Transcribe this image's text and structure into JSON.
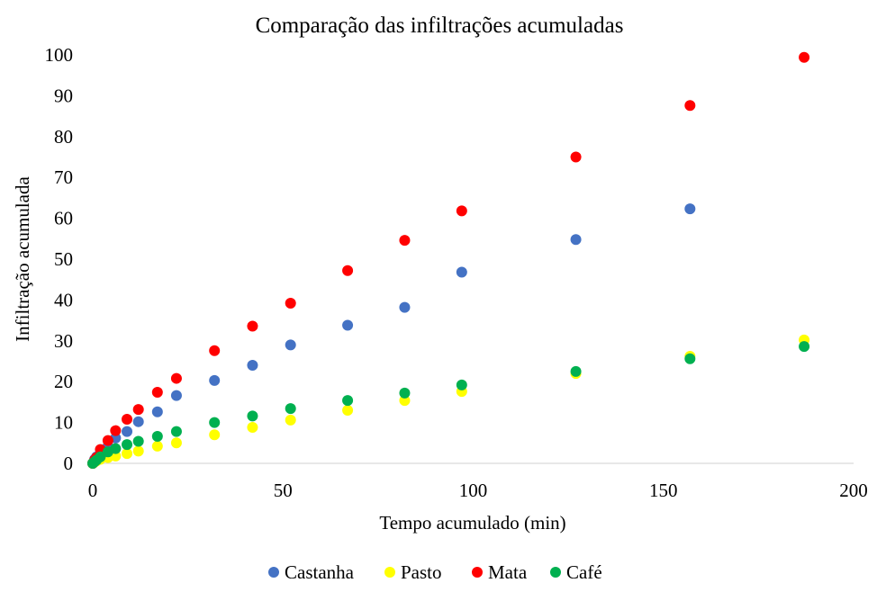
{
  "chart_data": {
    "type": "scatter",
    "title": "Comparação das infiltrações acumuladas",
    "xlabel": "Tempo acumulado (min)",
    "ylabel": "Infiltração acumulada",
    "xlim": [
      0,
      200
    ],
    "ylim": [
      0,
      100
    ],
    "x_ticks": [
      0,
      50,
      100,
      150,
      200
    ],
    "y_ticks": [
      0,
      10,
      20,
      30,
      40,
      50,
      60,
      70,
      80,
      90,
      100
    ],
    "x_tick_labels": [
      "0",
      "50",
      "100",
      "150",
      "200"
    ],
    "y_tick_labels": [
      "0",
      "10",
      "20",
      "30",
      "40",
      "50",
      "60",
      "70",
      "80",
      "90",
      "100"
    ],
    "grid": false,
    "legend_position": "bottom",
    "series": [
      {
        "name": "Castanha",
        "color": "#4472C4",
        "points": [
          [
            0,
            0
          ],
          [
            0.5,
            1.0
          ],
          [
            1,
            1.6
          ],
          [
            2,
            2.4
          ],
          [
            4,
            4.2
          ],
          [
            6,
            6.2
          ],
          [
            9,
            7.8
          ],
          [
            12,
            10.2
          ],
          [
            17,
            12.6
          ],
          [
            22,
            16.6
          ],
          [
            32,
            20.3
          ],
          [
            42,
            24.0
          ],
          [
            52,
            29.0
          ],
          [
            67,
            33.8
          ],
          [
            82,
            38.2
          ],
          [
            97,
            46.8
          ],
          [
            127,
            54.8
          ],
          [
            157,
            62.3
          ]
        ]
      },
      {
        "name": "Pasto",
        "color": "#FFFF00",
        "points": [
          [
            0,
            0
          ],
          [
            0.5,
            0.3
          ],
          [
            1,
            0.6
          ],
          [
            2,
            1.0
          ],
          [
            4,
            1.4
          ],
          [
            6,
            1.8
          ],
          [
            9,
            2.4
          ],
          [
            12,
            3.0
          ],
          [
            17,
            4.2
          ],
          [
            22,
            5.0
          ],
          [
            32,
            7.0
          ],
          [
            42,
            8.8
          ],
          [
            52,
            10.6
          ],
          [
            67,
            13.0
          ],
          [
            82,
            15.4
          ],
          [
            97,
            17.6
          ],
          [
            127,
            22.0
          ],
          [
            157,
            26.2
          ],
          [
            187,
            30.2
          ]
        ]
      },
      {
        "name": "Mata",
        "color": "#FF0000",
        "points": [
          [
            0,
            0
          ],
          [
            0.5,
            0.8
          ],
          [
            1,
            1.4
          ],
          [
            2,
            3.4
          ],
          [
            4,
            5.6
          ],
          [
            6,
            8.0
          ],
          [
            9,
            10.8
          ],
          [
            12,
            13.2
          ],
          [
            17,
            17.4
          ],
          [
            22,
            20.8
          ],
          [
            32,
            27.6
          ],
          [
            42,
            33.6
          ],
          [
            52,
            39.2
          ],
          [
            67,
            47.2
          ],
          [
            82,
            54.6
          ],
          [
            97,
            61.8
          ],
          [
            127,
            75.0
          ],
          [
            157,
            87.6
          ],
          [
            187,
            99.4
          ]
        ]
      },
      {
        "name": "Café",
        "color": "#00B050",
        "points": [
          [
            0,
            0
          ],
          [
            0.5,
            0.4
          ],
          [
            1,
            0.8
          ],
          [
            2,
            1.6
          ],
          [
            4,
            2.8
          ],
          [
            6,
            3.6
          ],
          [
            9,
            4.6
          ],
          [
            12,
            5.4
          ],
          [
            17,
            6.6
          ],
          [
            22,
            7.8
          ],
          [
            32,
            10.0
          ],
          [
            42,
            11.6
          ],
          [
            52,
            13.4
          ],
          [
            67,
            15.4
          ],
          [
            82,
            17.2
          ],
          [
            97,
            19.2
          ],
          [
            127,
            22.5
          ],
          [
            157,
            25.6
          ],
          [
            187,
            28.6
          ]
        ]
      }
    ]
  }
}
